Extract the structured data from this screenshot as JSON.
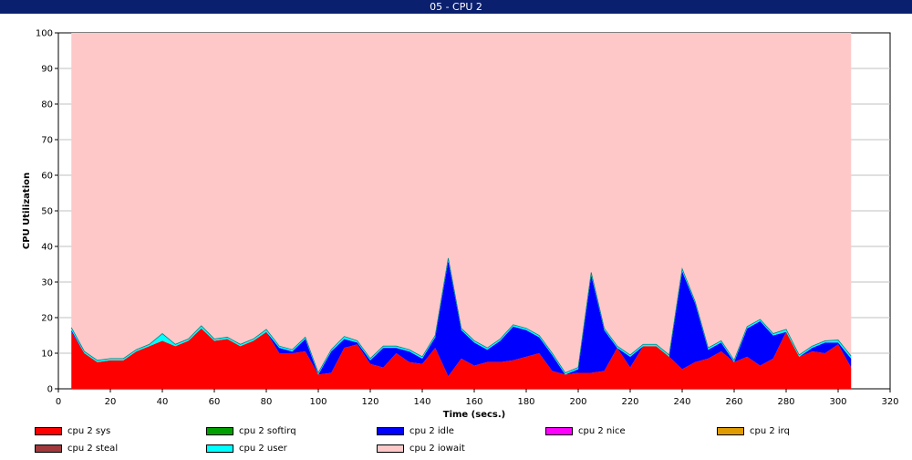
{
  "window": {
    "title": "05 - CPU 2"
  },
  "chart_data": {
    "type": "area",
    "stacked": true,
    "title": "05 - CPU 2",
    "xlabel": "Time (secs.)",
    "ylabel": "CPU Utilization",
    "xlim": [
      0,
      320
    ],
    "ylim": [
      0,
      100
    ],
    "x_ticks": [
      0,
      20,
      40,
      60,
      80,
      100,
      120,
      140,
      160,
      180,
      200,
      220,
      240,
      260,
      280,
      300,
      320
    ],
    "y_ticks": [
      0,
      10,
      20,
      30,
      40,
      50,
      60,
      70,
      80,
      90,
      100
    ],
    "grid": "horizontal",
    "legend_position": "bottom",
    "x": [
      5,
      10,
      15,
      20,
      25,
      30,
      35,
      40,
      45,
      50,
      55,
      60,
      65,
      70,
      75,
      80,
      85,
      90,
      95,
      100,
      105,
      110,
      115,
      120,
      125,
      130,
      135,
      140,
      145,
      150,
      155,
      160,
      165,
      170,
      175,
      180,
      185,
      190,
      195,
      200,
      205,
      210,
      215,
      220,
      225,
      230,
      235,
      240,
      245,
      250,
      255,
      260,
      265,
      270,
      275,
      280,
      285,
      290,
      295,
      300,
      305
    ],
    "series": [
      {
        "name": "cpu 2 sys",
        "color": "#ff0000",
        "values": [
          16,
          10,
          7.5,
          8,
          8,
          10.5,
          12,
          13.5,
          12,
          13.5,
          17,
          13.5,
          14,
          12,
          13.5,
          16,
          10,
          10,
          10.5,
          4,
          4.5,
          11.5,
          12.5,
          7,
          6,
          10,
          7.5,
          7,
          11.5,
          3.5,
          8.5,
          6.5,
          7.5,
          7.5,
          8,
          9,
          10,
          5,
          4,
          4.5,
          4.5,
          5,
          11.5,
          6,
          12,
          12,
          9,
          5.5,
          7.5,
          8.5,
          10.5,
          7.5,
          9,
          6.5,
          8.5,
          16,
          9,
          10.5,
          10,
          12.5,
          6
        ]
      },
      {
        "name": "cpu 2 softirq",
        "color": "#00a000",
        "values": [
          0,
          0,
          0,
          0,
          0,
          0,
          0,
          0,
          0,
          0,
          0,
          0,
          0,
          0,
          0,
          0,
          0,
          0,
          0,
          0,
          0,
          0,
          0,
          0,
          0,
          0,
          0,
          0,
          0,
          0,
          0,
          0,
          0,
          0,
          0,
          0,
          0,
          0,
          0,
          0,
          0,
          0,
          0,
          0,
          0,
          0,
          0,
          0,
          0,
          0,
          0,
          0,
          0,
          0,
          0,
          0,
          0,
          0,
          0,
          0,
          0
        ]
      },
      {
        "name": "cpu 2 idle",
        "color": "#0000ff",
        "values": [
          0.5,
          0,
          0,
          0,
          0,
          0,
          0,
          0,
          0,
          0,
          0,
          0,
          0,
          0,
          0,
          0,
          1.5,
          0.5,
          3.5,
          0,
          6,
          2.5,
          0.5,
          1,
          5.5,
          1.5,
          3,
          1.5,
          3,
          32.5,
          8,
          6.5,
          3.5,
          6,
          9.5,
          7.5,
          4.5,
          4.5,
          0,
          1,
          27.5,
          11.5,
          0,
          3,
          0,
          0,
          0,
          27.5,
          16.5,
          2.5,
          2.5,
          0,
          8,
          12.5,
          6.5,
          0,
          0,
          1,
          3,
          0.5,
          2.5
        ]
      },
      {
        "name": "cpu 2 nice",
        "color": "#ff00ff",
        "values": [
          0,
          0,
          0,
          0,
          0,
          0,
          0,
          0,
          0,
          0,
          0,
          0,
          0,
          0,
          0,
          0,
          0,
          0,
          0,
          0,
          0,
          0,
          0,
          0,
          0,
          0,
          0,
          0,
          0,
          0,
          0,
          0,
          0,
          0,
          0,
          0,
          0,
          0,
          0,
          0,
          0,
          0,
          0,
          0,
          0,
          0,
          0,
          0,
          0,
          0,
          0,
          0,
          0,
          0,
          0,
          0,
          0,
          0,
          0,
          0,
          0
        ]
      },
      {
        "name": "cpu 2 irq",
        "color": "#e09b00",
        "values": [
          0,
          0,
          0,
          0,
          0,
          0,
          0,
          0,
          0,
          0,
          0,
          0,
          0,
          0,
          0,
          0,
          0,
          0,
          0,
          0,
          0,
          0,
          0,
          0,
          0,
          0,
          0,
          0,
          0,
          0,
          0,
          0,
          0,
          0,
          0,
          0,
          0,
          0,
          0,
          0,
          0,
          0,
          0,
          0,
          0,
          0,
          0,
          0,
          0,
          0,
          0,
          0,
          0,
          0,
          0,
          0,
          0,
          0,
          0,
          0,
          0
        ]
      },
      {
        "name": "cpu 2 steal",
        "color": "#a0383c",
        "values": [
          0,
          0,
          0,
          0,
          0,
          0,
          0,
          0,
          0,
          0,
          0,
          0,
          0,
          0,
          0,
          0,
          0,
          0,
          0,
          0,
          0,
          0,
          0,
          0,
          0,
          0,
          0,
          0,
          0,
          0,
          0,
          0,
          0,
          0,
          0,
          0,
          0,
          0,
          0,
          0,
          0,
          0,
          0,
          0,
          0,
          0,
          0,
          0,
          0,
          0,
          0,
          0,
          0,
          0,
          0,
          0,
          0,
          0,
          0,
          0,
          0
        ]
      },
      {
        "name": "cpu 2 user",
        "color": "#00ffff",
        "values": [
          0.7,
          0.5,
          0.5,
          0.5,
          0.5,
          0.5,
          0.5,
          2,
          0.5,
          0.5,
          0.7,
          0.5,
          0.5,
          0.5,
          0.5,
          0.7,
          0.5,
          0.5,
          0.5,
          0.5,
          0.5,
          0.7,
          0.5,
          0.5,
          0.5,
          0.5,
          0.5,
          0.5,
          0.5,
          0.7,
          0.5,
          0.5,
          0.5,
          0.5,
          0.5,
          0.5,
          0.5,
          0.5,
          0.5,
          0.5,
          0.7,
          0.5,
          0.5,
          0.5,
          0.5,
          0.5,
          0.5,
          0.7,
          0.5,
          0.5,
          0.5,
          0.5,
          0.5,
          0.5,
          0.5,
          0.7,
          0.5,
          0.5,
          0.5,
          0.7,
          0.7
        ]
      },
      {
        "name": "cpu 2 iowait",
        "color": "#ffc8c8",
        "values": [
          82.8,
          89.5,
          92,
          91.5,
          91.5,
          89,
          87.5,
          84.5,
          87.5,
          86,
          82.3,
          86,
          85.5,
          87.5,
          86,
          83.3,
          88,
          89,
          85.5,
          95.5,
          89,
          85.3,
          86.5,
          91.5,
          88,
          88,
          89,
          91,
          85,
          63.3,
          83,
          86.5,
          88.5,
          86,
          82,
          83,
          85,
          90,
          95.5,
          94,
          67.3,
          83,
          88,
          90.5,
          87.5,
          87.5,
          90.5,
          66.3,
          75.5,
          88.5,
          86.5,
          92,
          82.5,
          80.5,
          84.5,
          83.3,
          90.5,
          88,
          86.5,
          86.3,
          90.8
        ]
      }
    ],
    "legend": [
      "cpu 2 sys",
      "cpu 2 softirq",
      "cpu 2 idle",
      "cpu 2 nice",
      "cpu 2 irq",
      "cpu 2 steal",
      "cpu 2 user",
      "cpu 2 iowait"
    ]
  }
}
